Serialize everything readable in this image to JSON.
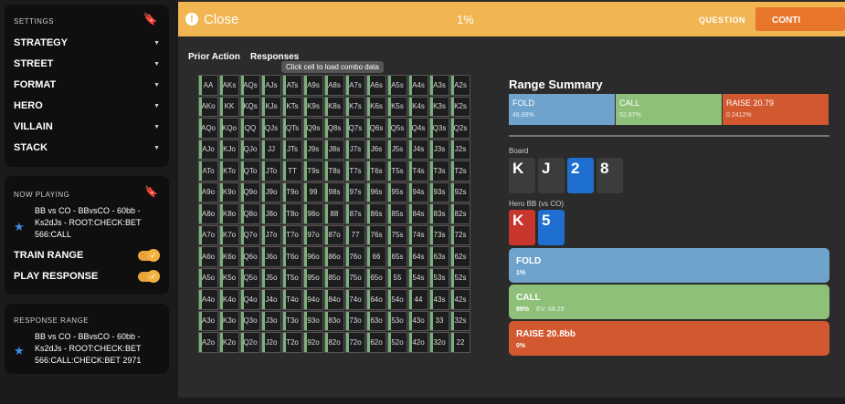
{
  "sidebar": {
    "settings": {
      "title": "SETTINGS",
      "items": [
        "STRATEGY",
        "STREET",
        "FORMAT",
        "HERO",
        "VILLAIN",
        "STACK"
      ]
    },
    "now_playing": {
      "title": "NOW PLAYING",
      "text": "BB vs CO - BBvsCO - 60bb - Ks2dJs - ROOT:CHECK:BET 566:CALL",
      "toggles": [
        "TRAIN RANGE",
        "PLAY RESPONSE"
      ]
    },
    "response_range": {
      "title": "RESPONSE RANGE",
      "text": "BB vs CO - BBvsCO - 60bb - Ks2dJs - ROOT:CHECK:BET 566:CALL:CHECK:BET 2971"
    }
  },
  "top_bar": {
    "close": "Close",
    "progress": "1%",
    "question": "QUESTION",
    "continue": "CONTI"
  },
  "tabs": [
    "Prior Action",
    "Responses"
  ],
  "tooltip": "Click cell to load combo data",
  "grid": [
    [
      "AA",
      "AKs",
      "AQs",
      "AJs",
      "ATs",
      "A9s",
      "A8s",
      "A7s",
      "A6s",
      "A5s",
      "A4s",
      "A3s",
      "A2s"
    ],
    [
      "AKo",
      "KK",
      "KQs",
      "KJs",
      "KTs",
      "K9s",
      "K8s",
      "K7s",
      "K6s",
      "K5s",
      "K4s",
      "K3s",
      "K2s"
    ],
    [
      "AQo",
      "KQo",
      "QQ",
      "QJs",
      "QTs",
      "Q9s",
      "Q8s",
      "Q7s",
      "Q6s",
      "Q5s",
      "Q4s",
      "Q3s",
      "Q2s"
    ],
    [
      "AJo",
      "KJo",
      "QJo",
      "JJ",
      "JTs",
      "J9s",
      "J8s",
      "J7s",
      "J6s",
      "J5s",
      "J4s",
      "J3s",
      "J2s"
    ],
    [
      "ATo",
      "KTo",
      "QTo",
      "JTo",
      "TT",
      "T9s",
      "T8s",
      "T7s",
      "T6s",
      "T5s",
      "T4s",
      "T3s",
      "T2s"
    ],
    [
      "A9o",
      "K9o",
      "Q9o",
      "J9o",
      "T9o",
      "99",
      "98s",
      "97s",
      "96s",
      "95s",
      "94s",
      "93s",
      "92s"
    ],
    [
      "A8o",
      "K8o",
      "Q8o",
      "J8o",
      "T8o",
      "98o",
      "88",
      "87s",
      "86s",
      "85s",
      "84s",
      "83s",
      "82s"
    ],
    [
      "A7o",
      "K7o",
      "Q7o",
      "J7o",
      "T7o",
      "97o",
      "87o",
      "77",
      "76s",
      "75s",
      "74s",
      "73s",
      "72s"
    ],
    [
      "A6o",
      "K6o",
      "Q6o",
      "J6o",
      "T6o",
      "96o",
      "86o",
      "76o",
      "66",
      "65s",
      "64s",
      "63s",
      "62s"
    ],
    [
      "A5o",
      "K5o",
      "Q5o",
      "J5o",
      "T5o",
      "95o",
      "85o",
      "75o",
      "65o",
      "55",
      "54s",
      "53s",
      "52s"
    ],
    [
      "A4o",
      "K4o",
      "Q4o",
      "J4o",
      "T4o",
      "94o",
      "84o",
      "74o",
      "64o",
      "54o",
      "44",
      "43s",
      "42s"
    ],
    [
      "A3o",
      "K3o",
      "Q3o",
      "J3o",
      "T3o",
      "93o",
      "83o",
      "73o",
      "63o",
      "53o",
      "43o",
      "33",
      "32s"
    ],
    [
      "A2o",
      "K2o",
      "Q2o",
      "J2o",
      "T2o",
      "92o",
      "82o",
      "72o",
      "62o",
      "52o",
      "42o",
      "32o",
      "22"
    ]
  ],
  "summary": {
    "title": "Range Summary",
    "segments": [
      {
        "label": "FOLD",
        "value": "46.89%",
        "color": "#6fa3cc"
      },
      {
        "label": "CALL",
        "value": "52.87%",
        "color": "#8fc07a"
      },
      {
        "label": "RAISE 20.79",
        "value": "0.2412%",
        "color": "#d2582f"
      }
    ]
  },
  "board": {
    "label": "Board",
    "cards": [
      {
        "rank": "K",
        "color": "#3c3c3c"
      },
      {
        "rank": "J",
        "color": "#3c3c3c"
      },
      {
        "rank": "2",
        "color": "#1f6fd0"
      },
      {
        "rank": "8",
        "color": "#3c3c3c"
      }
    ]
  },
  "hero": {
    "label": "Hero BB (vs CO)",
    "cards": [
      {
        "rank": "K",
        "color": "#c8352c"
      },
      {
        "rank": "5",
        "color": "#1f6fd0"
      }
    ]
  },
  "actions": [
    {
      "label": "FOLD",
      "freq": "1%",
      "color": "#6fa3cc"
    },
    {
      "label": "CALL",
      "freq": "99%",
      "ev": "EV: 68.29",
      "color": "#8fc07a"
    },
    {
      "label": "RAISE 20.8bb",
      "freq": "0%",
      "color": "#d2582f"
    }
  ]
}
